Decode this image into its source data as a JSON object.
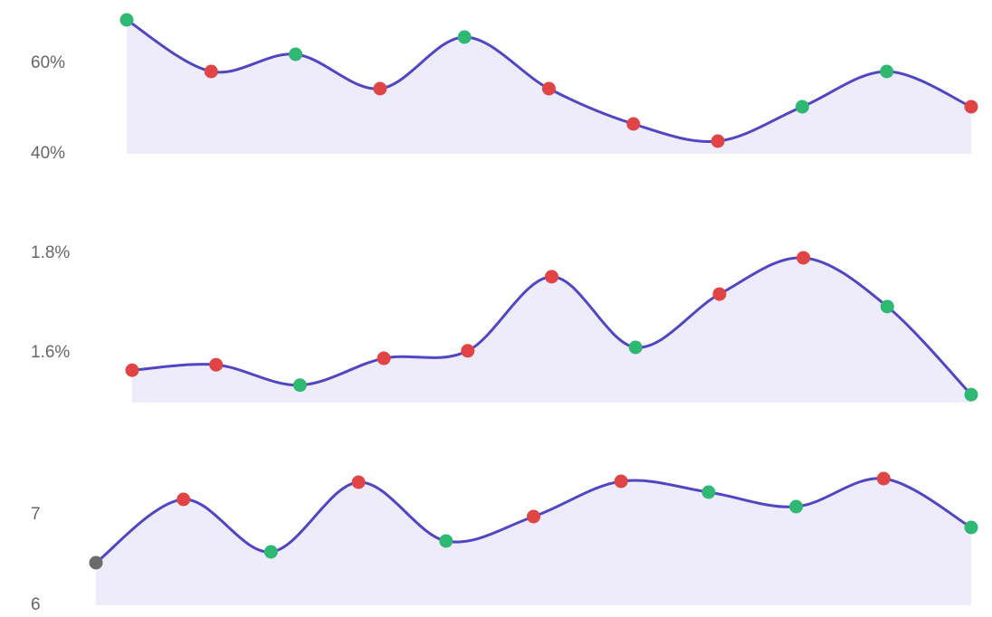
{
  "chart_data": [
    {
      "type": "area",
      "line_color": "#5046c4",
      "fill_color": "#eeebfa",
      "values": [
        69.6,
        58.2,
        62,
        54.4,
        65.8,
        54.4,
        46.6,
        42.8,
        50.4,
        58.2,
        50.4
      ],
      "point_colors": [
        "#2eb872",
        "#e04444",
        "#2eb872",
        "#e04444",
        "#2eb872",
        "#e04444",
        "#e04444",
        "#e04444",
        "#2eb872",
        "#2eb872",
        "#e04444"
      ],
      "ylim": [
        40,
        72
      ],
      "yticks": [
        {
          "value": 40,
          "label": "40%"
        },
        {
          "value": 60,
          "label": "60%"
        }
      ]
    },
    {
      "type": "area",
      "line_color": "#5046c4",
      "fill_color": "#eeebfa",
      "values": [
        1.565,
        1.576,
        1.535,
        1.589,
        1.604,
        1.753,
        1.611,
        1.718,
        1.791,
        1.693,
        1.516
      ],
      "point_colors": [
        "#e04444",
        "#e04444",
        "#2eb872",
        "#e04444",
        "#e04444",
        "#e04444",
        "#2eb872",
        "#e04444",
        "#e04444",
        "#2eb872",
        "#2eb872"
      ],
      "ylim": [
        1.5,
        1.82
      ],
      "yticks": [
        {
          "value": 1.6,
          "label": "1.6%"
        },
        {
          "value": 1.8,
          "label": "1.8%"
        }
      ]
    },
    {
      "type": "area",
      "line_color": "#5046c4",
      "fill_color": "#eeebfa",
      "values": [
        6.47,
        7.17,
        6.59,
        7.36,
        6.71,
        6.98,
        7.37,
        7.25,
        7.09,
        7.4,
        6.86
      ],
      "point_colors": [
        "#6b6b6b",
        "#e04444",
        "#2eb872",
        "#e04444",
        "#2eb872",
        "#e04444",
        "#e04444",
        "#2eb872",
        "#2eb872",
        "#e04444",
        "#2eb872"
      ],
      "ylim": [
        6,
        7.5
      ],
      "yticks": [
        6,
        7
      ]
    }
  ]
}
